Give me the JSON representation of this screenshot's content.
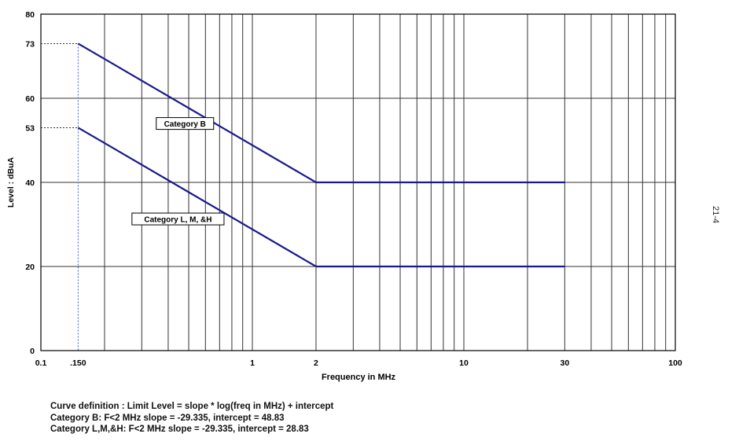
{
  "chart_data": {
    "type": "line",
    "title": "",
    "xlabel": "Frequency in MHz",
    "ylabel": "Level : dBuA",
    "x_scale": "log",
    "xlim": [
      0.1,
      100
    ],
    "ylim": [
      0,
      80
    ],
    "grid": true,
    "x_tick_labels": [
      {
        "value": 0.1,
        "label": "0.1"
      },
      {
        "value": 0.15,
        "label": ".150"
      },
      {
        "value": 1,
        "label": "1"
      },
      {
        "value": 2,
        "label": "2"
      },
      {
        "value": 10,
        "label": "10"
      },
      {
        "value": 30,
        "label": "30"
      },
      {
        "value": 100,
        "label": "100"
      }
    ],
    "y_tick_labels": [
      {
        "value": 0,
        "label": "0"
      },
      {
        "value": 20,
        "label": "20"
      },
      {
        "value": 40,
        "label": "40"
      },
      {
        "value": 53,
        "label": "53"
      },
      {
        "value": 60,
        "label": "60"
      },
      {
        "value": 73,
        "label": "73"
      },
      {
        "value": 80,
        "label": "80"
      }
    ],
    "series": [
      {
        "name": "Category B",
        "color": "#1a1a8c",
        "x": [
          0.15,
          2,
          30
        ],
        "y": [
          73,
          40,
          40
        ]
      },
      {
        "name": "Category L, M, &H",
        "color": "#1a1a8c",
        "x": [
          0.15,
          2,
          30
        ],
        "y": [
          53,
          20,
          20
        ]
      }
    ],
    "reference_marks": {
      "x": 0.15,
      "y_values": [
        73,
        53
      ]
    }
  },
  "notes": [
    "Curve definition : Limit Level = slope * log(freq in MHz) + intercept",
    "Category B: F<2 MHz slope = -29.335, intercept = 48.83",
    "Category L,M,&H: F<2 MHz slope = -29.335, intercept = 28.83"
  ],
  "side_label": "21-4",
  "colors": {
    "grid": "#333333",
    "series": "#1a1a8c",
    "reference": "#3b5bd6"
  }
}
